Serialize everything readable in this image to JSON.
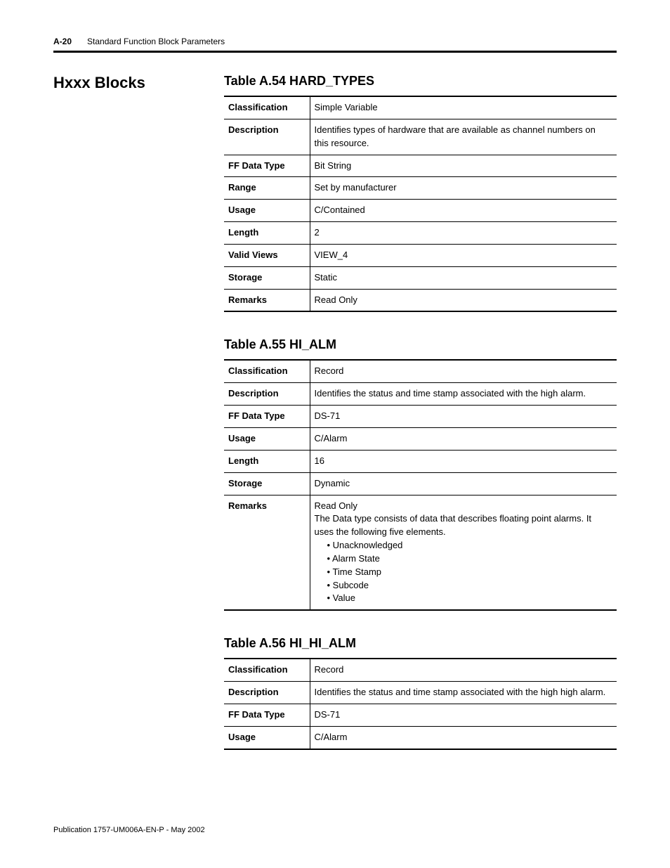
{
  "header": {
    "page_number": "A-20",
    "running_title": "Standard Function Block Parameters"
  },
  "sidebar": {
    "heading": "Hxxx Blocks"
  },
  "tables": [
    {
      "title": "Table A.54 HARD_TYPES",
      "rows": [
        {
          "label": "Classification",
          "value": "Simple Variable"
        },
        {
          "label": "Description",
          "value": "Identifies types of hardware that are available as channel numbers on this resource."
        },
        {
          "label": "FF Data Type",
          "value": "Bit String"
        },
        {
          "label": "Range",
          "value": "Set by manufacturer"
        },
        {
          "label": "Usage",
          "value": "C/Contained"
        },
        {
          "label": "Length",
          "value": "2"
        },
        {
          "label": "Valid Views",
          "value": "VIEW_4"
        },
        {
          "label": "Storage",
          "value": "Static"
        },
        {
          "label": "Remarks",
          "value": "Read Only"
        }
      ]
    },
    {
      "title": "Table A.55 HI_ALM",
      "rows": [
        {
          "label": "Classification",
          "value": "Record"
        },
        {
          "label": "Description",
          "value": "Identifies the status and time stamp associated with the high alarm."
        },
        {
          "label": "FF Data Type",
          "value": "DS-71"
        },
        {
          "label": "Usage",
          "value": "C/Alarm"
        },
        {
          "label": "Length",
          "value": "16"
        },
        {
          "label": "Storage",
          "value": "Dynamic"
        },
        {
          "label": "Remarks",
          "value_lines": [
            "Read Only",
            "The Data type consists of data that describes floating point alarms. It uses the following five elements."
          ],
          "bullets": [
            "Unacknowledged",
            "Alarm State",
            "Time Stamp",
            "Subcode",
            "Value"
          ]
        }
      ]
    },
    {
      "title": "Table A.56 HI_HI_ALM",
      "rows": [
        {
          "label": "Classification",
          "value": "Record"
        },
        {
          "label": "Description",
          "value": "Identifies the status and time stamp associated with the high high alarm."
        },
        {
          "label": "FF Data Type",
          "value": "DS-71"
        },
        {
          "label": "Usage",
          "value": "C/Alarm"
        }
      ]
    }
  ],
  "footer": {
    "pub": "Publication 1757-UM006A-EN-P - May 2002"
  }
}
